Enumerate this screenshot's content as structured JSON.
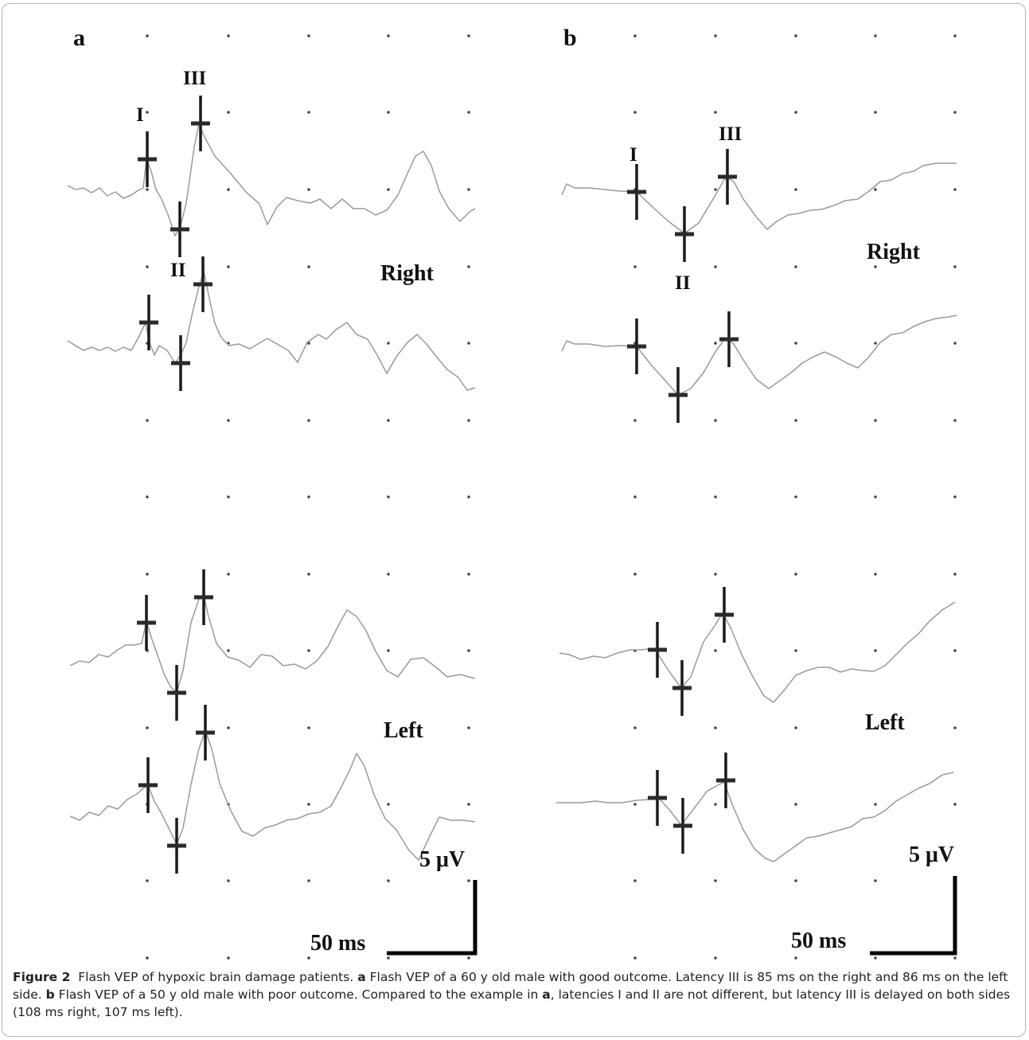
{
  "figure": {
    "panels": [
      {
        "letter": "a",
        "side_labels": {
          "right": "Right",
          "left": "Left"
        },
        "peak_labels": {
          "I": "I",
          "II": "II",
          "III": "III"
        },
        "scale": {
          "amplitude": "5 μV",
          "time": "50 ms"
        }
      },
      {
        "letter": "b",
        "side_labels": {
          "right": "Right",
          "left": "Left"
        },
        "peak_labels": {
          "I": "I",
          "II": "II",
          "III": "III"
        },
        "scale": {
          "amplitude": "5 μV",
          "time": "50 ms"
        }
      }
    ]
  },
  "caption": {
    "label": "Figure 2",
    "intro": "Flash VEP of hypoxic brain damage patients.",
    "part_a_letter": "a",
    "part_a_text": "Flash VEP of a 60 y old male with good outcome. Latency III is 85 ms on the right and 86 ms on the left side.",
    "part_b_letter": "b",
    "part_b_text_1": "Flash VEP of a 50 y old male with poor outcome. Compared to the example in",
    "part_b_ref_letter": "a",
    "part_b_text_2": ", latencies I and II are not different, but latency III is delayed on both sides (108 ms right, 107 ms left)."
  },
  "colors": {
    "trace": "#9a9a9a",
    "marker": "#1a1a1a",
    "dots": "#444444",
    "frame": "#b5b5b5"
  }
}
